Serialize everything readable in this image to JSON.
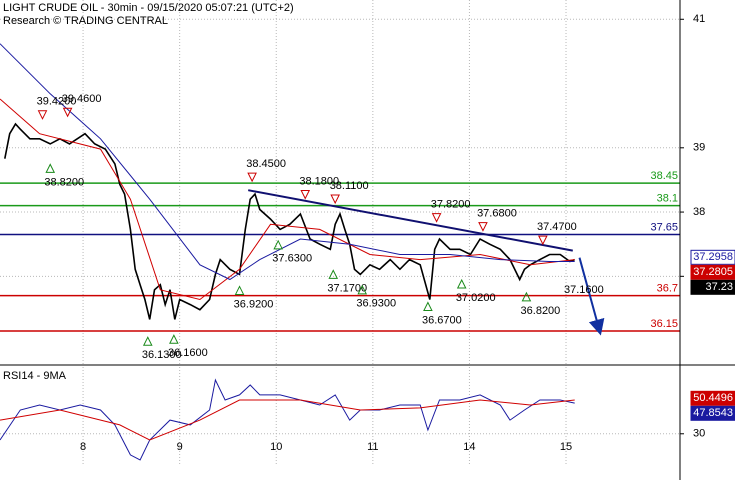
{
  "header": {
    "title": "LIGHT CRUDE OIL - 30min - 09/15/2020 05:07:21 (UTC+2)",
    "subtitle": "Research © TRADING CENTRAL"
  },
  "chart_data": [
    {
      "type": "line",
      "xlim": [
        0.14,
        7.18
      ],
      "xticks": [
        {
          "value": 1,
          "label": "8"
        },
        {
          "value": 2,
          "label": "9"
        },
        {
          "value": 3,
          "label": "10"
        },
        {
          "value": 4,
          "label": "11"
        },
        {
          "value": 5,
          "label": "14"
        },
        {
          "value": 6,
          "label": "15"
        }
      ],
      "ylim": [
        35.62,
        41.3
      ],
      "yticks": [
        37,
        38,
        39,
        41
      ],
      "grid": true,
      "series": [
        {
          "color": "#000000",
          "x": [
            0.19,
            0.24,
            0.3,
            0.35,
            0.45,
            0.55,
            0.66,
            0.76,
            0.86,
            1.02,
            1.12,
            1.23,
            1.33,
            1.38,
            1.43,
            1.49,
            1.54,
            1.59,
            1.64,
            1.69,
            1.74,
            1.8,
            1.85,
            1.9,
            1.95,
            2.0,
            2.11,
            2.21,
            2.31,
            2.37,
            2.42,
            2.52,
            2.62,
            2.68,
            2.73,
            2.78,
            2.83,
            2.94,
            3.04,
            3.14,
            3.25,
            3.35,
            3.45,
            3.56,
            3.61,
            3.66,
            3.71,
            3.76,
            3.81,
            3.87,
            3.97,
            4.07,
            4.18,
            4.28,
            4.38,
            4.49,
            4.59,
            4.64,
            4.69,
            4.8,
            4.9,
            5.01,
            5.11,
            5.21,
            5.32,
            5.42,
            5.52,
            5.57,
            5.63,
            5.73,
            5.83,
            5.94,
            6.04,
            6.09
          ],
          "values": [
            38.83,
            39.22,
            39.37,
            39.29,
            39.14,
            39.14,
            39.06,
            39.14,
            39.06,
            39.22,
            39.06,
            38.98,
            38.75,
            38.43,
            38.28,
            37.73,
            37.11,
            36.87,
            36.64,
            36.33,
            36.79,
            36.87,
            36.56,
            36.79,
            36.33,
            36.64,
            36.56,
            36.48,
            36.64,
            37.03,
            37.26,
            37.11,
            37.03,
            37.73,
            38.2,
            38.28,
            38.04,
            37.89,
            37.73,
            37.81,
            37.97,
            37.58,
            37.5,
            37.42,
            37.81,
            37.97,
            37.73,
            37.5,
            37.11,
            37.03,
            37.18,
            37.11,
            37.26,
            37.11,
            37.26,
            37.18,
            36.64,
            37.42,
            37.58,
            37.42,
            37.42,
            37.34,
            37.58,
            37.5,
            37.42,
            37.26,
            36.95,
            37.11,
            37.18,
            37.26,
            37.34,
            37.34,
            37.23,
            37.26
          ]
        },
        {
          "color": "#d00000",
          "x": [
            0.14,
            0.55,
            1.18,
            1.49,
            1.8,
            2.21,
            2.62,
            2.94,
            3.45,
            3.97,
            4.49,
            5.11,
            5.63,
            6.09
          ],
          "values": [
            39.76,
            39.22,
            38.98,
            38.2,
            36.79,
            36.64,
            37.11,
            37.81,
            37.73,
            37.34,
            37.26,
            37.34,
            37.18,
            37.26
          ]
        },
        {
          "color": "#1a1aa0",
          "x": [
            0.14,
            0.66,
            1.18,
            1.69,
            2.21,
            2.52,
            2.83,
            3.25,
            3.76,
            4.28,
            4.8,
            5.32,
            5.83,
            6.09
          ],
          "values": [
            40.62,
            39.84,
            39.14,
            38.2,
            37.18,
            36.95,
            37.26,
            37.58,
            37.5,
            37.34,
            37.34,
            37.26,
            37.23,
            37.23
          ]
        }
      ],
      "levels": [
        {
          "value": 38.45,
          "color": "#1a9a1a"
        },
        {
          "value": 38.1,
          "color": "#1a9a1a"
        },
        {
          "value": 37.65,
          "color": "#101080"
        },
        {
          "value": 36.7,
          "color": "#cc0000"
        },
        {
          "value": 36.15,
          "color": "#cc0000"
        }
      ],
      "trendlines": [
        {
          "color": "#101070",
          "x": [
            2.71,
            6.07
          ],
          "values": [
            38.34,
            37.4
          ]
        }
      ],
      "forecast": {
        "color": "#1030a0",
        "x": [
          6.14,
          6.35
        ],
        "values": [
          37.29,
          36.14
        ]
      },
      "annotations": [
        {
          "x": 0.58,
          "value": 39.42,
          "label": "39.4200",
          "dir": "down"
        },
        {
          "x": 0.84,
          "value": 39.46,
          "label": "39.4600",
          "dir": "down"
        },
        {
          "x": 0.66,
          "value": 38.82,
          "label": "38.8200",
          "dir": "up"
        },
        {
          "x": 2.75,
          "value": 38.45,
          "label": "38.4500",
          "dir": "down"
        },
        {
          "x": 3.3,
          "value": 38.18,
          "label": "38.1800",
          "dir": "down"
        },
        {
          "x": 3.61,
          "value": 38.11,
          "label": "38.1100",
          "dir": "down"
        },
        {
          "x": 3.02,
          "value": 37.63,
          "label": "37.6300",
          "dir": "up"
        },
        {
          "x": 2.62,
          "value": 36.92,
          "label": "36.9200",
          "dir": "up"
        },
        {
          "x": 3.59,
          "value": 37.17,
          "label": "37.1700",
          "dir": "up"
        },
        {
          "x": 3.89,
          "value": 36.93,
          "label": "36.9300",
          "dir": "up"
        },
        {
          "x": 4.57,
          "value": 36.67,
          "label": "36.6700",
          "dir": "up"
        },
        {
          "x": 4.66,
          "value": 37.82,
          "label": "37.8200",
          "dir": "down"
        },
        {
          "x": 5.14,
          "value": 37.68,
          "label": "37.6800",
          "dir": "down"
        },
        {
          "x": 4.92,
          "value": 37.02,
          "label": "37.0200",
          "dir": "up"
        },
        {
          "x": 5.76,
          "value": 37.47,
          "label": "37.4700",
          "dir": "down"
        },
        {
          "x": 5.59,
          "value": 36.82,
          "label": "36.8200",
          "dir": "up"
        },
        {
          "x": 1.67,
          "value": 36.13,
          "label": "36.1300",
          "dir": "up"
        },
        {
          "x": 1.94,
          "value": 36.16,
          "label": "36.1600",
          "dir": "up"
        },
        {
          "x": 6.04,
          "value": 37.16,
          "label": "37.1600"
        }
      ],
      "value_tags": [
        {
          "value": 37.2958,
          "color": "#1a1aa0",
          "fill": "#ffffff"
        },
        {
          "value": 37.2805,
          "color": "#ffffff",
          "fill": "#cc0000"
        },
        {
          "value": 37.23,
          "color": "#ffffff",
          "fill": "#000000"
        }
      ]
    },
    {
      "type": "line",
      "title": "RSI14 - 9MA",
      "xlim": [
        0.14,
        7.18
      ],
      "ylim": [
        12,
        68.5
      ],
      "yticks": [
        30
      ],
      "grid": true,
      "series": [
        {
          "color": "#1a1aa0",
          "x": [
            0.14,
            0.35,
            0.55,
            0.76,
            0.97,
            1.18,
            1.33,
            1.49,
            1.59,
            1.69,
            1.9,
            2.11,
            2.31,
            2.37,
            2.47,
            2.62,
            2.73,
            2.83,
            3.04,
            3.25,
            3.45,
            3.61,
            3.76,
            3.87,
            4.07,
            4.28,
            4.49,
            4.57,
            4.69,
            4.9,
            5.11,
            5.32,
            5.42,
            5.57,
            5.73,
            5.94,
            6.09
          ],
          "values": [
            26.4,
            43.7,
            46.6,
            43.7,
            46.6,
            43.7,
            35.1,
            17.8,
            14.9,
            26.4,
            37.9,
            35.1,
            43.7,
            61.0,
            49.5,
            52.4,
            58.1,
            52.4,
            52.4,
            49.5,
            46.6,
            52.4,
            37.9,
            43.7,
            43.7,
            46.6,
            46.6,
            32.2,
            49.5,
            49.5,
            52.4,
            46.6,
            37.9,
            43.7,
            49.5,
            49.5,
            47.7
          ]
        },
        {
          "color": "#d00000",
          "x": [
            0.14,
            0.76,
            1.38,
            1.69,
            2.21,
            2.62,
            3.25,
            3.87,
            4.49,
            5.11,
            5.63,
            6.09
          ],
          "values": [
            37.9,
            43.7,
            35.1,
            26.4,
            37.9,
            49.5,
            49.5,
            43.7,
            44.9,
            49.5,
            46.6,
            49.5
          ]
        }
      ],
      "value_tags": [
        {
          "value": 50.4496,
          "color": "#ffffff",
          "fill": "#cc0000"
        },
        {
          "value": 47.8543,
          "color": "#ffffff",
          "fill": "#1a1aa0"
        }
      ]
    }
  ]
}
